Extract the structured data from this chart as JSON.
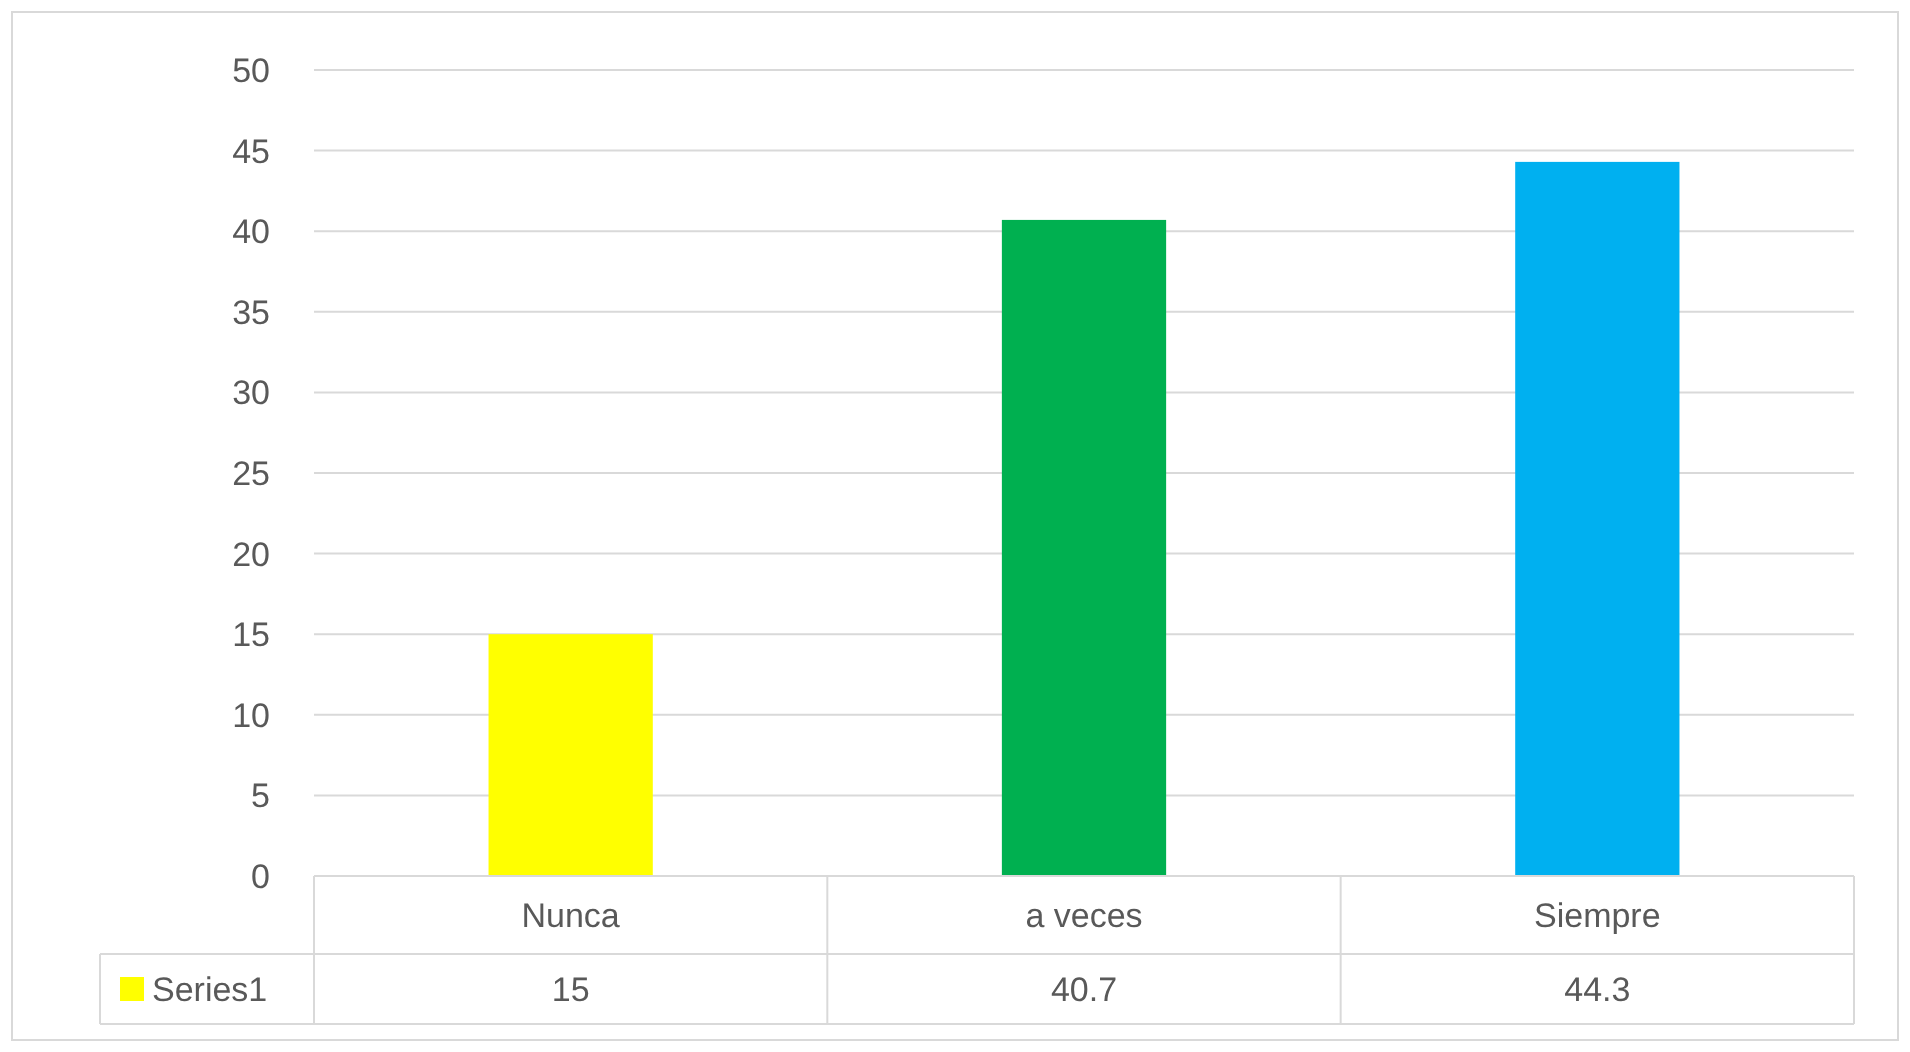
{
  "chart_data": {
    "type": "bar",
    "categories": [
      "Nunca",
      "a veces",
      "Siempre"
    ],
    "series": [
      {
        "name": "Series1",
        "color": "#ffff00",
        "colors": [
          "#ffff00",
          "#00b050",
          "#00b0f0"
        ],
        "values": [
          15,
          40.7,
          44.3
        ]
      }
    ],
    "ylim": [
      0,
      50
    ],
    "yticks": [
      0,
      5,
      10,
      15,
      20,
      25,
      30,
      35,
      40,
      45,
      50
    ],
    "grid": "y",
    "data_labels": true
  }
}
